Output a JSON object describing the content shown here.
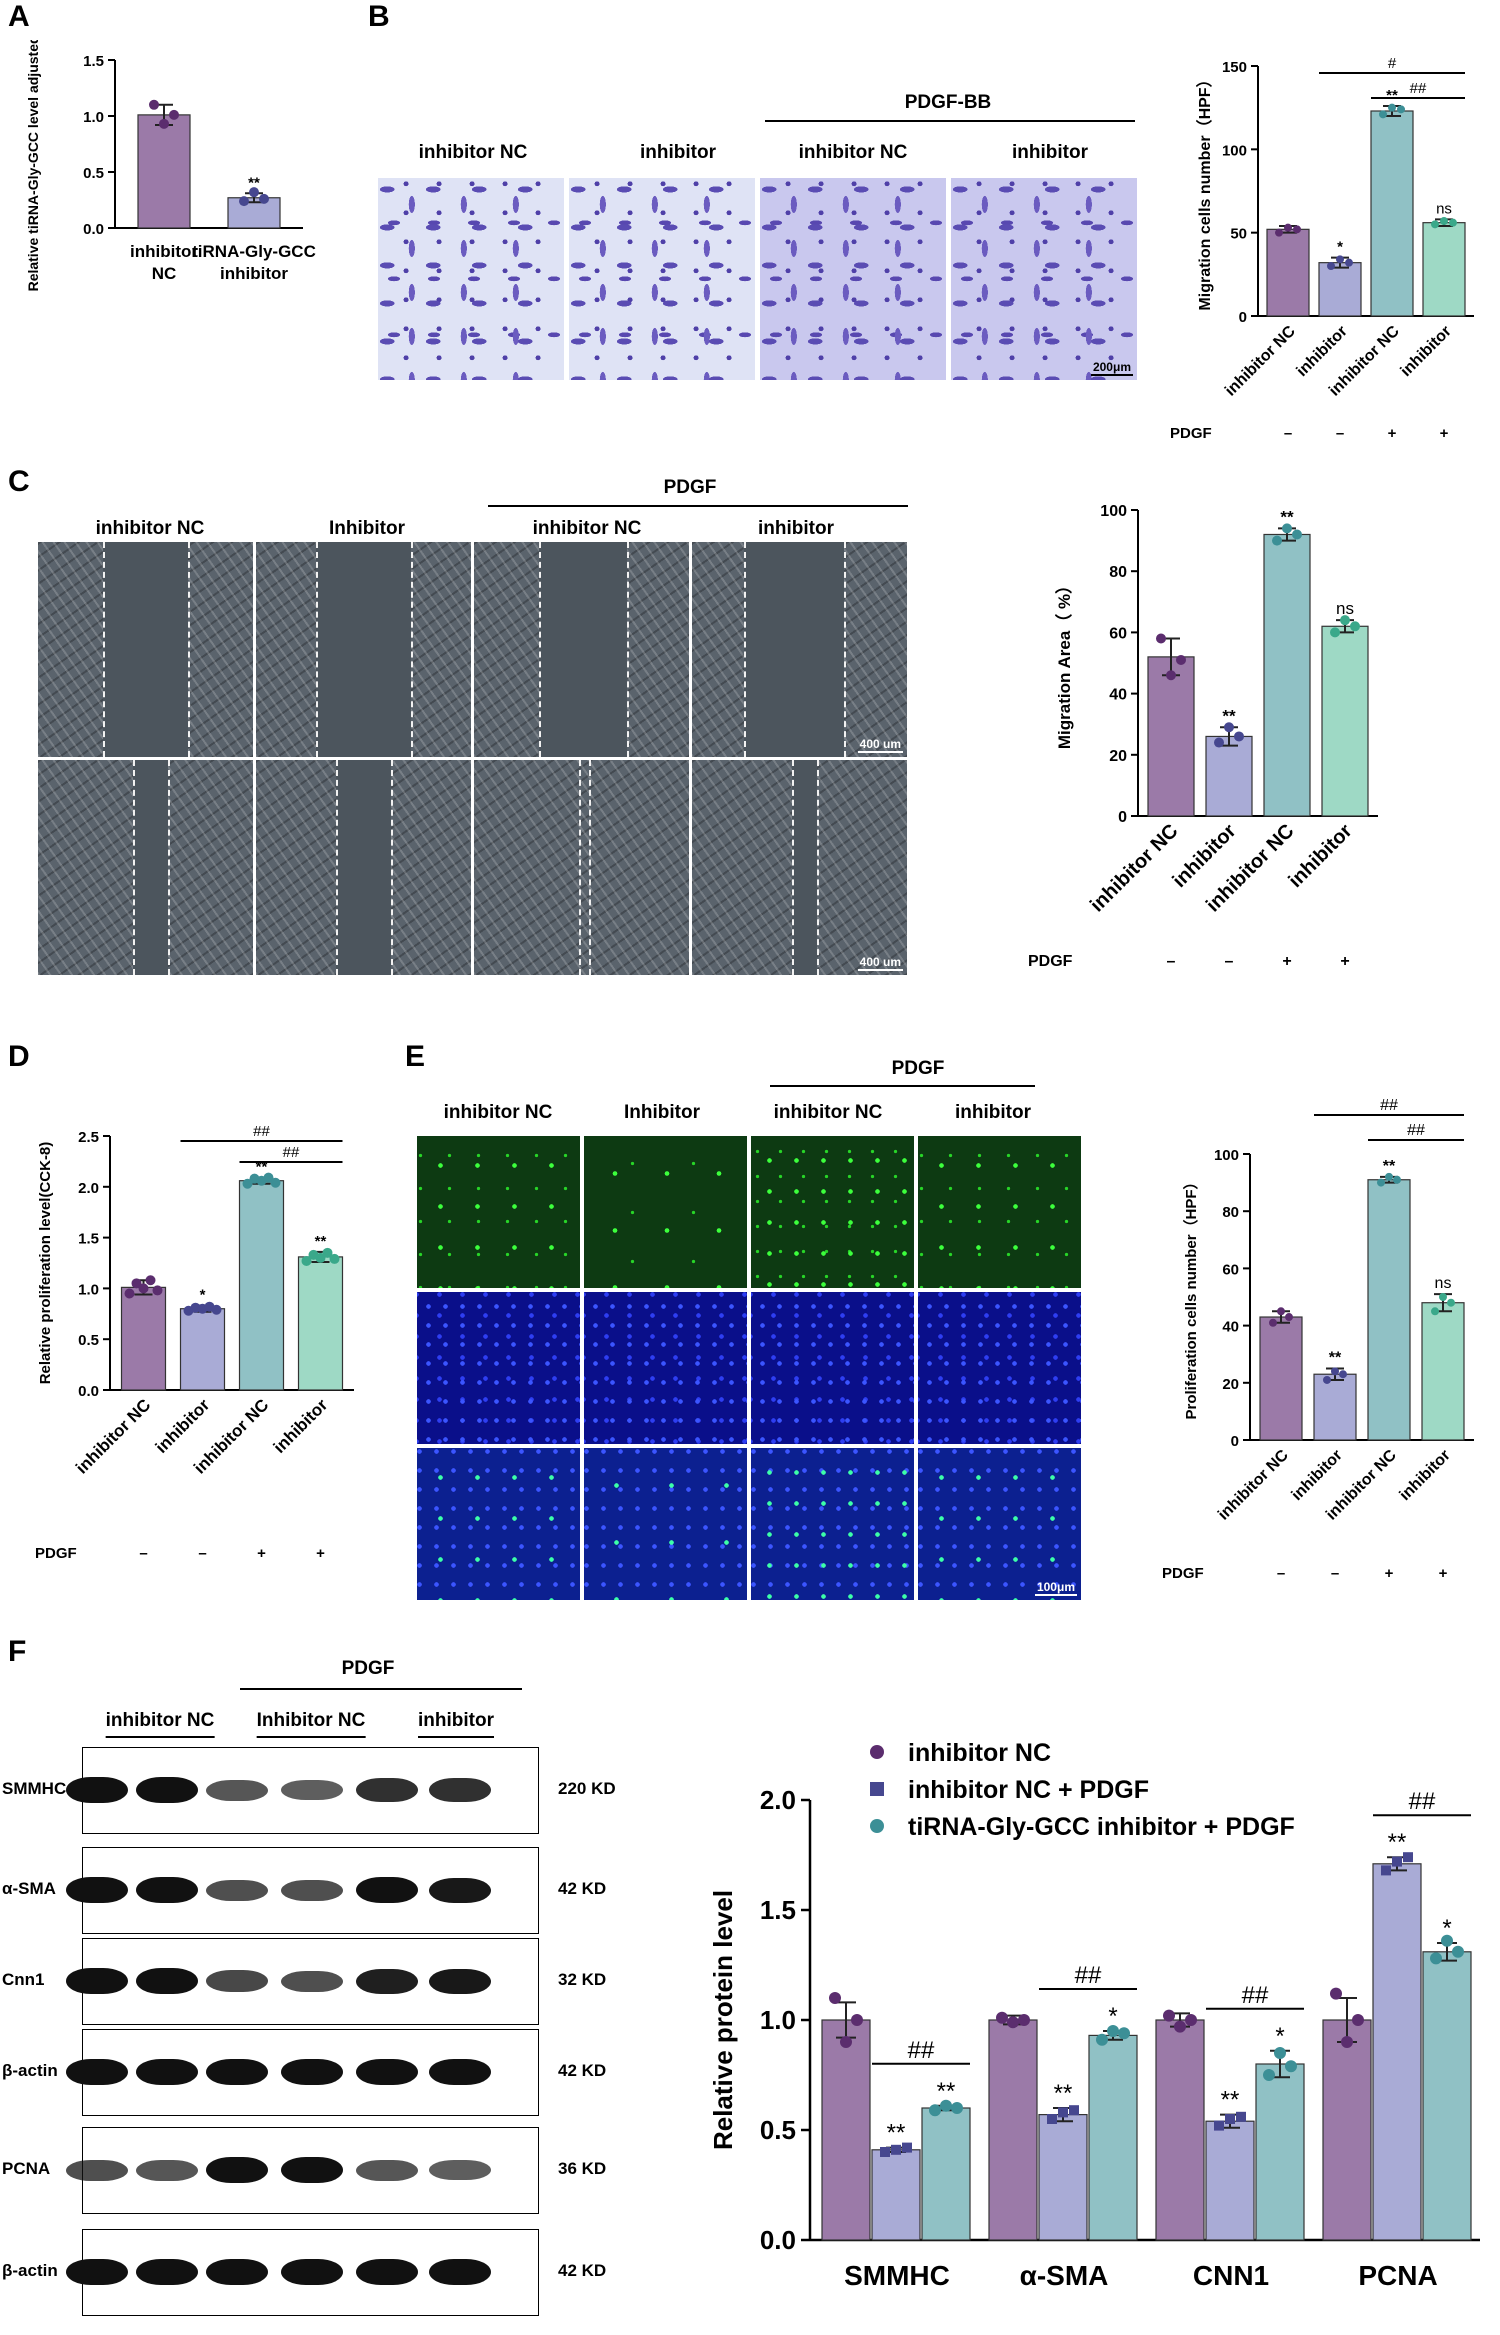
{
  "panels": [
    "A",
    "B",
    "C",
    "D",
    "E",
    "F"
  ],
  "colors": {
    "nc": "#9b7aa8",
    "inh": "#a9abd6",
    "pnc": "#90c1c5",
    "pinh": "#9ed9c5",
    "dot_nc": "#5b2d6e",
    "dot_inh": "#46478f",
    "dot_pnc": "#3c8f96",
    "dot_pinh": "#3aa88a"
  },
  "B": {
    "group_header": "PDGF-BB",
    "headers": [
      "inhibitor NC",
      "inhibitor",
      "inhibitor NC",
      "inhibitor"
    ],
    "scale": "200μm"
  },
  "C": {
    "group_header": "PDGF",
    "headers": [
      "inhibitor NC",
      "Inhibitor",
      "inhibitor NC",
      "inhibitor"
    ],
    "scale": "400 um"
  },
  "E": {
    "group_header": "PDGF",
    "headers": [
      "inhibitor NC",
      "Inhibitor",
      "inhibitor NC",
      "inhibitor"
    ],
    "scale": "100μm"
  },
  "F": {
    "group_header": "PDGF",
    "lane_headers": [
      "inhibitor NC",
      "Inhibitor NC",
      "inhibitor"
    ],
    "rows": [
      {
        "name": "SMMHC",
        "kd": "220 KD"
      },
      {
        "name": "α-SMA",
        "kd": "42 KD"
      },
      {
        "name": "Cnn1",
        "kd": "32 KD"
      },
      {
        "name": "β-actin",
        "kd": "42 KD"
      },
      {
        "name": "PCNA",
        "kd": "36 KD"
      },
      {
        "name": "β-actin",
        "kd": "42 KD"
      }
    ]
  },
  "chart_data": [
    {
      "id": "A",
      "type": "bar",
      "categories": [
        "inhibitor NC",
        "tiRNA-Gly-GCC inhibitor"
      ],
      "values": [
        1.01,
        0.27
      ],
      "errors": [
        0.09,
        0.04
      ],
      "points": [
        [
          1.1,
          0.93,
          1.01
        ],
        [
          0.24,
          0.32,
          0.26
        ]
      ],
      "ylabel": "Relative  tiRNA-Gly-GCC level adjusted to U6",
      "ylim": [
        0,
        1.5
      ],
      "yticks": [
        0.0,
        0.5,
        1.0,
        1.5
      ],
      "annotations": [
        "",
        "**"
      ]
    },
    {
      "id": "B",
      "type": "bar",
      "categories": [
        "inhibitor NC",
        "inhibitor",
        "inhibitor NC",
        "inhibitor"
      ],
      "values": [
        52,
        32,
        123,
        56
      ],
      "errors": [
        2,
        3,
        3,
        2
      ],
      "points": [
        [
          50,
          53,
          52
        ],
        [
          30,
          34,
          32
        ],
        [
          121,
          125,
          124
        ],
        [
          55,
          57,
          56
        ]
      ],
      "ylabel": "Migration cells number（HPF）",
      "ylim": [
        0,
        150
      ],
      "yticks": [
        0,
        50,
        100,
        150
      ],
      "annotations": [
        "",
        "*",
        "**",
        "ns"
      ],
      "treatment_label": "PDGF",
      "treatment": [
        "–",
        "–",
        "+",
        "+"
      ],
      "brackets": [
        {
          "from": 1,
          "to": 3,
          "label": "#"
        },
        {
          "from": 2,
          "to": 3,
          "label": "##"
        }
      ]
    },
    {
      "id": "C",
      "type": "bar",
      "categories": [
        "inhibitor NC",
        "inhibitor",
        "inhibitor NC",
        "inhibitor"
      ],
      "values": [
        52,
        26,
        92,
        62
      ],
      "errors": [
        6,
        3,
        2,
        2
      ],
      "points": [
        [
          58,
          46,
          51
        ],
        [
          24,
          29,
          26
        ],
        [
          90,
          94,
          92
        ],
        [
          60,
          64,
          62
        ]
      ],
      "ylabel": "Migration Area（ %）",
      "ylim": [
        0,
        100
      ],
      "yticks": [
        0,
        20,
        40,
        60,
        80,
        100
      ],
      "annotations": [
        "",
        "**",
        "**",
        "ns"
      ],
      "treatment_label": "PDGF",
      "treatment": [
        "–",
        "–",
        "+",
        "+"
      ],
      "brackets": [
        {
          "from": 2,
          "to": 3,
          "label": "##"
        }
      ]
    },
    {
      "id": "D",
      "type": "bar",
      "categories": [
        "inhibitor NC",
        "inhibitor",
        "inhibitor NC",
        "inhibitor"
      ],
      "values": [
        1.01,
        0.8,
        2.06,
        1.31
      ],
      "errors": [
        0.07,
        0.03,
        0.03,
        0.05
      ],
      "points": [
        [
          0.95,
          1.05,
          1.0,
          1.08,
          0.98
        ],
        [
          0.78,
          0.81,
          0.8,
          0.82,
          0.79
        ],
        [
          2.03,
          2.08,
          2.06,
          2.09,
          2.04
        ],
        [
          1.27,
          1.33,
          1.3,
          1.35,
          1.29
        ]
      ],
      "ylabel": "Relative proliferation level(CCK-8)",
      "ylim": [
        0,
        2.5
      ],
      "yticks": [
        0.0,
        0.5,
        1.0,
        1.5,
        2.0,
        2.5
      ],
      "annotations": [
        "",
        "*",
        "**",
        "**"
      ],
      "treatment_label": "PDGF",
      "treatment": [
        "–",
        "–",
        "+",
        "+"
      ],
      "brackets": [
        {
          "from": 1,
          "to": 3,
          "label": "##"
        },
        {
          "from": 2,
          "to": 3,
          "label": "##"
        }
      ]
    },
    {
      "id": "E",
      "type": "bar",
      "categories": [
        "inhibitor NC",
        "inhibitor",
        "inhibitor NC",
        "inhibitor"
      ],
      "values": [
        43,
        23,
        91,
        48
      ],
      "errors": [
        2,
        2,
        1,
        3
      ],
      "points": [
        [
          41,
          45,
          43
        ],
        [
          21,
          24,
          23
        ],
        [
          90,
          92,
          91
        ],
        [
          45,
          50,
          48
        ]
      ],
      "ylabel": "Proliferation cells number（HPF）",
      "ylim": [
        0,
        100
      ],
      "yticks": [
        0,
        20,
        40,
        60,
        80,
        100
      ],
      "annotations": [
        "",
        "**",
        "**",
        "ns"
      ],
      "treatment_label": "PDGF",
      "treatment": [
        "–",
        "–",
        "+",
        "+"
      ],
      "brackets": [
        {
          "from": 1,
          "to": 3,
          "label": "##"
        },
        {
          "from": 2,
          "to": 3,
          "label": "##"
        }
      ]
    },
    {
      "id": "F",
      "type": "bar",
      "categories": [
        "SMMHC",
        "α-SMA",
        "CNN1",
        "PCNA"
      ],
      "series": [
        {
          "name": "inhibitor NC",
          "values": [
            1.0,
            1.0,
            1.0,
            1.0
          ],
          "errors": [
            0.08,
            0.02,
            0.03,
            0.1
          ],
          "points": [
            [
              1.1,
              0.9,
              1.0
            ],
            [
              1.01,
              0.99,
              1.0
            ],
            [
              1.02,
              0.97,
              1.0
            ],
            [
              1.12,
              0.9,
              1.0
            ]
          ]
        },
        {
          "name": "inhibitor NC + PDGF",
          "values": [
            0.41,
            0.57,
            0.54,
            1.71
          ],
          "errors": [
            0.01,
            0.03,
            0.03,
            0.03
          ],
          "points": [
            [
              0.4,
              0.41,
              0.42
            ],
            [
              0.55,
              0.58,
              0.59
            ],
            [
              0.52,
              0.55,
              0.56
            ],
            [
              1.68,
              1.72,
              1.74
            ]
          ]
        },
        {
          "name": "tiRNA-Gly-GCC inhibitor + PDGF",
          "values": [
            0.6,
            0.93,
            0.8,
            1.31
          ],
          "errors": [
            0.01,
            0.02,
            0.06,
            0.04
          ],
          "points": [
            [
              0.59,
              0.61,
              0.6
            ],
            [
              0.91,
              0.95,
              0.94
            ],
            [
              0.75,
              0.85,
              0.79
            ],
            [
              1.28,
              1.36,
              1.31
            ]
          ]
        }
      ],
      "ylabel": "Relative  protein level",
      "ylim": [
        0,
        2.0
      ],
      "yticks": [
        0.0,
        0.5,
        1.0,
        1.5,
        2.0
      ],
      "annotations": [
        [
          "",
          "**",
          "**"
        ],
        [
          "",
          "**",
          "*"
        ],
        [
          "",
          "**",
          "*"
        ],
        [
          "",
          "**",
          "*"
        ]
      ],
      "bracket_label": "##",
      "legend": "top"
    }
  ]
}
